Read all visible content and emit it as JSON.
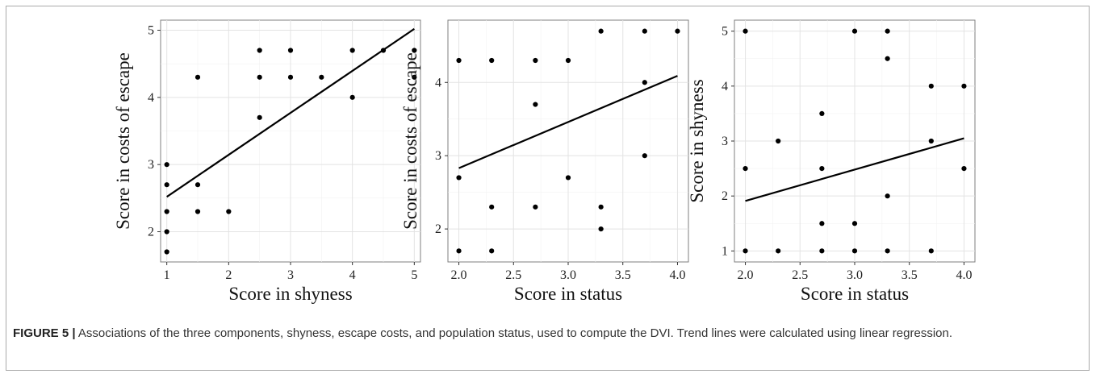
{
  "caption": {
    "label": "FIGURE 5 |",
    "text": " Associations of the three components, shyness, escape costs, and population status, used to compute the DVI. Trend lines were calculated using linear regression."
  },
  "chart_data": [
    {
      "type": "scatter",
      "xlabel": "Score in shyness",
      "ylabel": "Score in costs of escape",
      "xlim": [
        0.9,
        5.1
      ],
      "ylim": [
        1.55,
        5.15
      ],
      "xticks": [
        1,
        2,
        3,
        4,
        5
      ],
      "xtick_labels": [
        "1",
        "2",
        "3",
        "4",
        "5"
      ],
      "yticks": [
        2,
        3,
        4,
        5
      ],
      "ytick_labels": [
        "2",
        "3",
        "4",
        "5"
      ],
      "grid": true,
      "points": [
        {
          "x": 1,
          "y": 1.7
        },
        {
          "x": 1,
          "y": 2.0
        },
        {
          "x": 1,
          "y": 2.3
        },
        {
          "x": 1,
          "y": 2.7
        },
        {
          "x": 1,
          "y": 3.0
        },
        {
          "x": 1.5,
          "y": 2.3
        },
        {
          "x": 1.5,
          "y": 2.7
        },
        {
          "x": 1.5,
          "y": 4.3
        },
        {
          "x": 2,
          "y": 2.3
        },
        {
          "x": 2.5,
          "y": 3.7
        },
        {
          "x": 2.5,
          "y": 4.3
        },
        {
          "x": 2.5,
          "y": 4.7
        },
        {
          "x": 3,
          "y": 4.3
        },
        {
          "x": 3,
          "y": 4.7
        },
        {
          "x": 3.5,
          "y": 4.3
        },
        {
          "x": 4,
          "y": 4.0
        },
        {
          "x": 4,
          "y": 4.7
        },
        {
          "x": 4.5,
          "y": 4.7
        },
        {
          "x": 5,
          "y": 4.3
        },
        {
          "x": 5,
          "y": 4.7
        }
      ],
      "trend": {
        "x": [
          1,
          5
        ],
        "y": [
          2.52,
          5.02
        ]
      }
    },
    {
      "type": "scatter",
      "xlabel": "Score in status",
      "ylabel": "Score in costs of escape",
      "xlim": [
        1.9,
        4.1
      ],
      "ylim": [
        1.55,
        4.85
      ],
      "xticks": [
        2.0,
        2.5,
        3.0,
        3.5,
        4.0
      ],
      "xtick_labels": [
        "2.0",
        "2.5",
        "3.0",
        "3.5",
        "4.0"
      ],
      "yticks": [
        2,
        3,
        4
      ],
      "ytick_labels": [
        "2",
        "3",
        "4"
      ],
      "grid": true,
      "points": [
        {
          "x": 2.0,
          "y": 1.7
        },
        {
          "x": 2.0,
          "y": 2.7
        },
        {
          "x": 2.0,
          "y": 4.3
        },
        {
          "x": 2.3,
          "y": 1.7
        },
        {
          "x": 2.3,
          "y": 2.3
        },
        {
          "x": 2.3,
          "y": 4.3
        },
        {
          "x": 2.7,
          "y": 2.3
        },
        {
          "x": 2.7,
          "y": 3.7
        },
        {
          "x": 2.7,
          "y": 4.3
        },
        {
          "x": 3.0,
          "y": 2.7
        },
        {
          "x": 3.0,
          "y": 4.3
        },
        {
          "x": 3.3,
          "y": 2.0
        },
        {
          "x": 3.3,
          "y": 2.3
        },
        {
          "x": 3.3,
          "y": 4.7
        },
        {
          "x": 3.7,
          "y": 3.0
        },
        {
          "x": 3.7,
          "y": 4.0
        },
        {
          "x": 3.7,
          "y": 4.7
        },
        {
          "x": 4.0,
          "y": 4.7
        }
      ],
      "trend": {
        "x": [
          2.0,
          4.0
        ],
        "y": [
          2.83,
          4.09
        ]
      }
    },
    {
      "type": "scatter",
      "xlabel": "Score in status",
      "ylabel": "Score in shyness",
      "xlim": [
        1.9,
        4.1
      ],
      "ylim": [
        0.8,
        5.2
      ],
      "xticks": [
        2.0,
        2.5,
        3.0,
        3.5,
        4.0
      ],
      "xtick_labels": [
        "2.0",
        "2.5",
        "3.0",
        "3.5",
        "4.0"
      ],
      "yticks": [
        1,
        2,
        3,
        4,
        5
      ],
      "ytick_labels": [
        "1",
        "2",
        "3",
        "4",
        "5"
      ],
      "grid": true,
      "points": [
        {
          "x": 2.0,
          "y": 1.0
        },
        {
          "x": 2.0,
          "y": 2.5
        },
        {
          "x": 2.0,
          "y": 5.0
        },
        {
          "x": 2.3,
          "y": 1.0
        },
        {
          "x": 2.3,
          "y": 3.0
        },
        {
          "x": 2.7,
          "y": 1.0
        },
        {
          "x": 2.7,
          "y": 1.5
        },
        {
          "x": 2.7,
          "y": 2.5
        },
        {
          "x": 2.7,
          "y": 3.5
        },
        {
          "x": 3.0,
          "y": 1.0
        },
        {
          "x": 3.0,
          "y": 1.5
        },
        {
          "x": 3.0,
          "y": 5.0
        },
        {
          "x": 3.3,
          "y": 1.0
        },
        {
          "x": 3.3,
          "y": 2.0
        },
        {
          "x": 3.3,
          "y": 4.5
        },
        {
          "x": 3.3,
          "y": 5.0
        },
        {
          "x": 3.7,
          "y": 1.0
        },
        {
          "x": 3.7,
          "y": 3.0
        },
        {
          "x": 3.7,
          "y": 4.0
        },
        {
          "x": 4.0,
          "y": 2.5
        },
        {
          "x": 4.0,
          "y": 4.0
        }
      ],
      "trend": {
        "x": [
          2.0,
          4.0
        ],
        "y": [
          1.91,
          3.05
        ]
      }
    }
  ]
}
